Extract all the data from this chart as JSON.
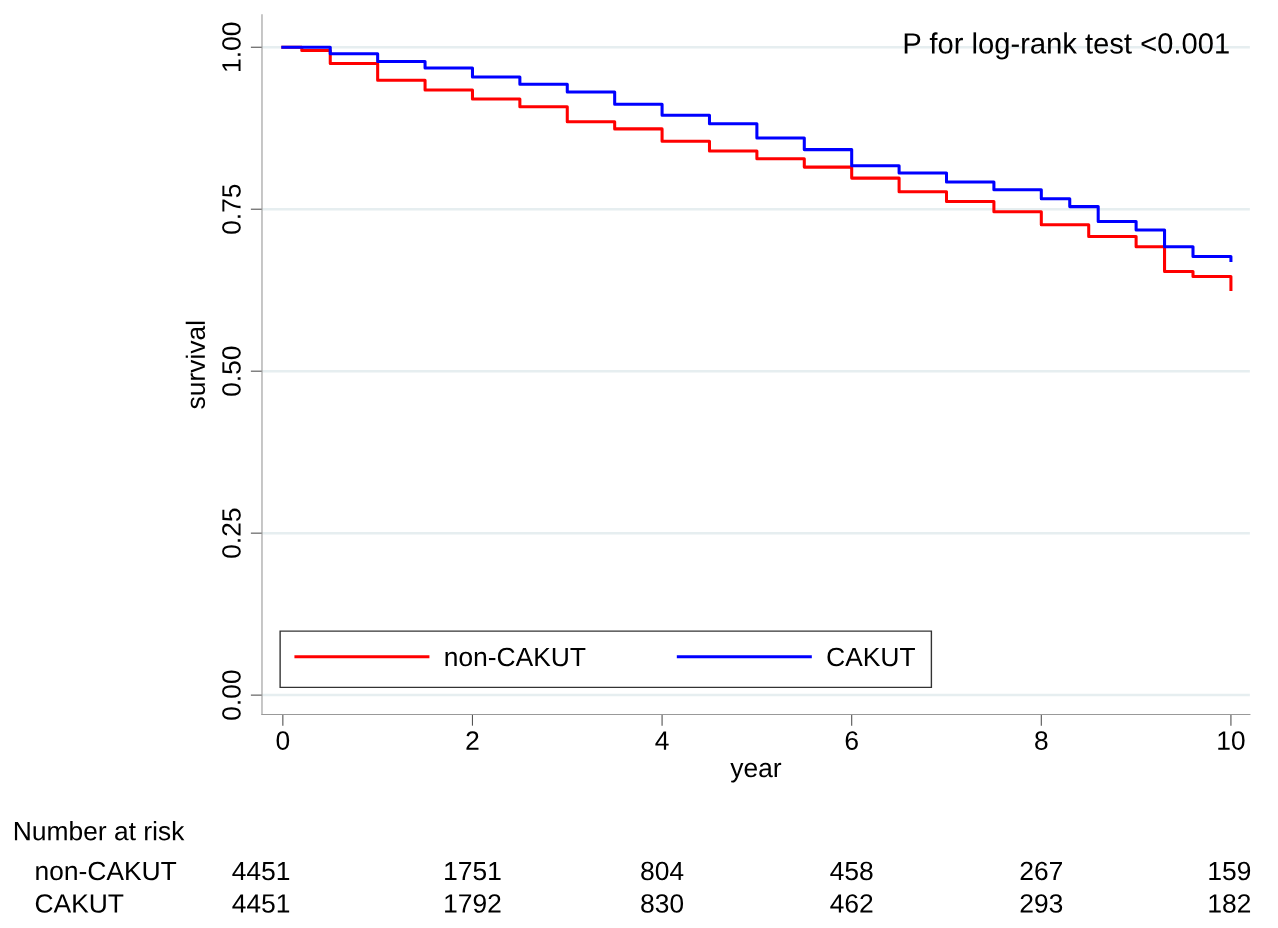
{
  "chart_data": {
    "type": "step",
    "xlabel": "year",
    "ylabel": "survival",
    "xlim": [
      -0.22,
      10.2
    ],
    "xticks": [
      0,
      2,
      4,
      6,
      8,
      10
    ],
    "ylim": [
      -0.03,
      1.05
    ],
    "yticks": [
      {
        "value": 0,
        "label": "0.00"
      },
      {
        "value": 0.25,
        "label": "0.25"
      },
      {
        "value": 0.5,
        "label": "0.50"
      },
      {
        "value": 0.75,
        "label": "0.75"
      },
      {
        "value": 1,
        "label": "1.00"
      }
    ],
    "grid": "y",
    "legend": "bottom",
    "line_style": "solid",
    "series": [
      {
        "name": "non-CAKUT",
        "color": "#ff0000",
        "x": [
          0,
          0.2,
          0.5,
          1,
          1.5,
          2,
          2.5,
          3,
          3.5,
          4,
          4.5,
          5,
          5.5,
          6,
          6.5,
          7,
          7.5,
          8,
          8.5,
          9,
          9.3,
          9.6,
          10
        ],
        "values": [
          1.0,
          0.995,
          0.975,
          0.949,
          0.934,
          0.92,
          0.908,
          0.885,
          0.874,
          0.855,
          0.84,
          0.828,
          0.815,
          0.798,
          0.777,
          0.762,
          0.746,
          0.726,
          0.708,
          0.692,
          0.654,
          0.646,
          0.626
        ]
      },
      {
        "name": "CAKUT",
        "color": "#0000ff",
        "x": [
          0,
          0.2,
          0.5,
          1,
          1.5,
          2,
          2.5,
          3,
          3.5,
          4,
          4.5,
          5,
          5.5,
          6,
          6.5,
          7,
          7.5,
          8,
          8.3,
          8.6,
          9,
          9.3,
          9.6,
          10
        ],
        "values": [
          1.0,
          1.0,
          0.99,
          0.978,
          0.968,
          0.954,
          0.943,
          0.931,
          0.912,
          0.895,
          0.882,
          0.86,
          0.842,
          0.817,
          0.806,
          0.792,
          0.78,
          0.766,
          0.754,
          0.731,
          0.718,
          0.692,
          0.677,
          0.671
        ]
      }
    ],
    "annotations": [
      "P for log-rank test <0.001",
      "Number at risk",
      "non-CAKUT",
      "4451",
      "1751",
      "804",
      "458",
      "267",
      "159",
      "CAKUT",
      "4451",
      "1792",
      "830",
      "462",
      "293",
      "182"
    ]
  }
}
